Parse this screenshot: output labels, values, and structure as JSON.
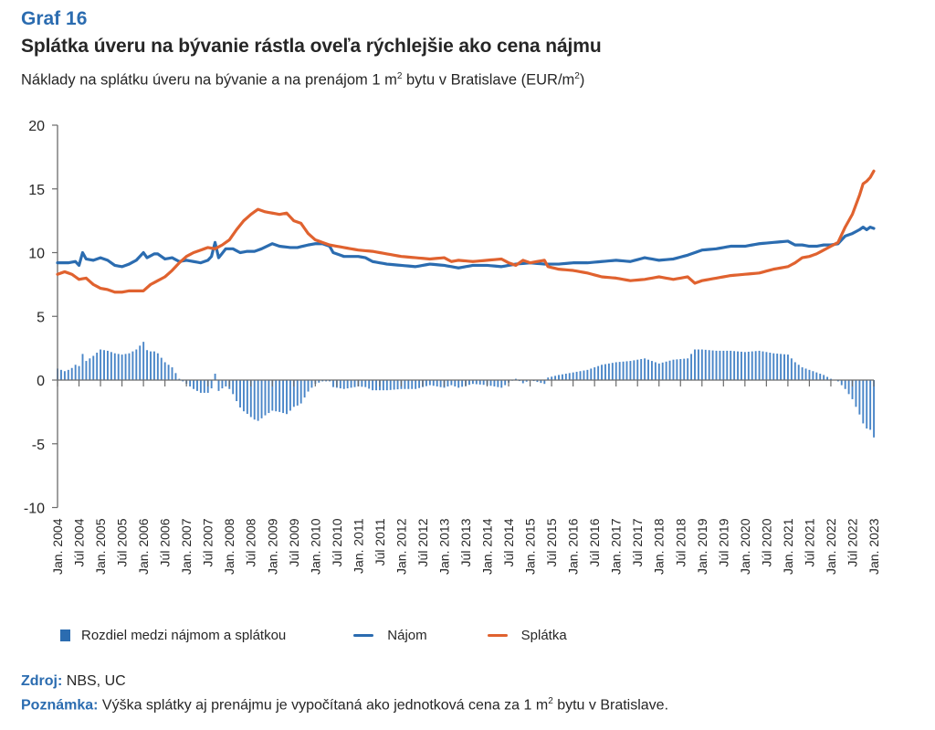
{
  "header": {
    "graf_number": "Graf 16",
    "title": "Splátka úveru na bývanie rástla oveľa rýchlejšie ako cena nájmu",
    "subtitle_pre": "Náklady na splátku úveru na bývanie a na prenájom 1 m",
    "subtitle_sup": "2",
    "subtitle_mid": " bytu v Bratislave (EUR/m",
    "subtitle_sup2": "2",
    "subtitle_post": ")"
  },
  "legend": {
    "diff_label": "Rozdiel medzi nájmom a splátkou",
    "najom_label": "Nájom",
    "splatka_label": "Splátka"
  },
  "footer": {
    "source_label": "Zdroj:",
    "source_text": " NBS, UC",
    "note_label": "Poznámka:",
    "note_pre": " Výška splátky aj prenájmu je vypočítaná ako jednotková cena za 1 m",
    "note_sup": "2",
    "note_post": " bytu v Bratislave."
  },
  "colors": {
    "najom": "#2b6cb0",
    "splatka": "#e0622f",
    "diff": "#4a86c8",
    "axis": "#6b6b6b"
  },
  "chart_data": {
    "type": "line",
    "title": "Splátka úveru na bývanie rástla oveľa rýchlejšie ako cena nájmu",
    "ylabel": "EUR/m2",
    "xlabel": "",
    "ylim": [
      -10,
      20
    ],
    "yticks": [
      20,
      15,
      10,
      5,
      0,
      -5,
      -10
    ],
    "x_start": "2004-01",
    "x_end": "2023-01",
    "xtick_labels": [
      "Jan. 2004",
      "Júl 2004",
      "Jan. 2005",
      "Júl 2005",
      "Jan. 2006",
      "Júl 2006",
      "Jan. 2007",
      "Júl 2007",
      "Jan. 2008",
      "Júl 2008",
      "Jan. 2009",
      "Júl 2009",
      "Jan. 2010",
      "Júl 2010",
      "Jan. 2011",
      "Júl 2011",
      "Jan. 2012",
      "Júl 2012",
      "Jan. 2013",
      "Júl 2013",
      "Jan. 2014",
      "Júl 2014",
      "Jan. 2015",
      "Júl 2015",
      "Jan. 2016",
      "Júl 2016",
      "Jan. 2017",
      "Júl 2017",
      "Jan. 2018",
      "Júl 2018",
      "Jan. 2019",
      "Júl 2019",
      "Jan. 2020",
      "Júl 2020",
      "Jan. 2021",
      "Júl 2021",
      "Jan. 2022",
      "Júl 2022",
      "Jan. 2023"
    ],
    "grid": false,
    "legend_position": "bottom",
    "series": [
      {
        "name": "Nájom",
        "type": "line",
        "points": [
          [
            "2004-01",
            9.2
          ],
          [
            "2004-04",
            9.2
          ],
          [
            "2004-06",
            9.3
          ],
          [
            "2004-07",
            9.0
          ],
          [
            "2004-08",
            10.0
          ],
          [
            "2004-09",
            9.5
          ],
          [
            "2004-11",
            9.4
          ],
          [
            "2005-01",
            9.6
          ],
          [
            "2005-03",
            9.4
          ],
          [
            "2005-05",
            9.0
          ],
          [
            "2005-07",
            8.9
          ],
          [
            "2005-09",
            9.1
          ],
          [
            "2005-11",
            9.4
          ],
          [
            "2006-01",
            10.0
          ],
          [
            "2006-02",
            9.6
          ],
          [
            "2006-04",
            9.9
          ],
          [
            "2006-05",
            9.9
          ],
          [
            "2006-07",
            9.5
          ],
          [
            "2006-09",
            9.6
          ],
          [
            "2006-11",
            9.3
          ],
          [
            "2007-01",
            9.4
          ],
          [
            "2007-03",
            9.3
          ],
          [
            "2007-05",
            9.2
          ],
          [
            "2007-07",
            9.4
          ],
          [
            "2007-08",
            9.7
          ],
          [
            "2007-09",
            10.8
          ],
          [
            "2007-10",
            9.6
          ],
          [
            "2007-12",
            10.3
          ],
          [
            "2008-02",
            10.3
          ],
          [
            "2008-04",
            10.0
          ],
          [
            "2008-06",
            10.1
          ],
          [
            "2008-08",
            10.1
          ],
          [
            "2008-10",
            10.3
          ],
          [
            "2009-01",
            10.7
          ],
          [
            "2009-03",
            10.5
          ],
          [
            "2009-06",
            10.4
          ],
          [
            "2009-08",
            10.4
          ],
          [
            "2009-11",
            10.6
          ],
          [
            "2010-01",
            10.7
          ],
          [
            "2010-03",
            10.7
          ],
          [
            "2010-05",
            10.5
          ],
          [
            "2010-06",
            10.0
          ],
          [
            "2010-09",
            9.7
          ],
          [
            "2011-01",
            9.7
          ],
          [
            "2011-03",
            9.6
          ],
          [
            "2011-05",
            9.3
          ],
          [
            "2011-09",
            9.1
          ],
          [
            "2012-01",
            9.0
          ],
          [
            "2012-05",
            8.9
          ],
          [
            "2012-09",
            9.1
          ],
          [
            "2013-01",
            9.0
          ],
          [
            "2013-05",
            8.8
          ],
          [
            "2013-09",
            9.0
          ],
          [
            "2014-01",
            9.0
          ],
          [
            "2014-05",
            8.9
          ],
          [
            "2014-09",
            9.1
          ],
          [
            "2015-01",
            9.2
          ],
          [
            "2015-05",
            9.1
          ],
          [
            "2015-09",
            9.1
          ],
          [
            "2016-01",
            9.2
          ],
          [
            "2016-05",
            9.2
          ],
          [
            "2016-09",
            9.3
          ],
          [
            "2017-01",
            9.4
          ],
          [
            "2017-05",
            9.3
          ],
          [
            "2017-09",
            9.6
          ],
          [
            "2018-01",
            9.4
          ],
          [
            "2018-05",
            9.5
          ],
          [
            "2018-09",
            9.8
          ],
          [
            "2019-01",
            10.2
          ],
          [
            "2019-05",
            10.3
          ],
          [
            "2019-09",
            10.5
          ],
          [
            "2020-01",
            10.5
          ],
          [
            "2020-05",
            10.7
          ],
          [
            "2020-09",
            10.8
          ],
          [
            "2021-01",
            10.9
          ],
          [
            "2021-03",
            10.6
          ],
          [
            "2021-05",
            10.6
          ],
          [
            "2021-07",
            10.5
          ],
          [
            "2021-09",
            10.5
          ],
          [
            "2021-11",
            10.6
          ],
          [
            "2022-01",
            10.6
          ],
          [
            "2022-03",
            10.7
          ],
          [
            "2022-05",
            11.3
          ],
          [
            "2022-07",
            11.5
          ],
          [
            "2022-09",
            11.8
          ],
          [
            "2022-10",
            12.0
          ],
          [
            "2022-11",
            11.8
          ],
          [
            "2022-12",
            12.0
          ],
          [
            "2023-01",
            11.9
          ]
        ]
      },
      {
        "name": "Splátka",
        "type": "line",
        "points": [
          [
            "2004-01",
            8.3
          ],
          [
            "2004-03",
            8.5
          ],
          [
            "2004-05",
            8.3
          ],
          [
            "2004-07",
            7.9
          ],
          [
            "2004-09",
            8.0
          ],
          [
            "2004-11",
            7.5
          ],
          [
            "2005-01",
            7.2
          ],
          [
            "2005-03",
            7.1
          ],
          [
            "2005-05",
            6.9
          ],
          [
            "2005-07",
            6.9
          ],
          [
            "2005-09",
            7.0
          ],
          [
            "2005-11",
            7.0
          ],
          [
            "2006-01",
            7.0
          ],
          [
            "2006-03",
            7.5
          ],
          [
            "2006-05",
            7.8
          ],
          [
            "2006-07",
            8.1
          ],
          [
            "2006-09",
            8.6
          ],
          [
            "2006-11",
            9.2
          ],
          [
            "2007-01",
            9.7
          ],
          [
            "2007-03",
            10.0
          ],
          [
            "2007-05",
            10.2
          ],
          [
            "2007-07",
            10.4
          ],
          [
            "2007-09",
            10.3
          ],
          [
            "2007-11",
            10.6
          ],
          [
            "2008-01",
            11.0
          ],
          [
            "2008-03",
            11.8
          ],
          [
            "2008-05",
            12.5
          ],
          [
            "2008-07",
            13.0
          ],
          [
            "2008-09",
            13.4
          ],
          [
            "2008-11",
            13.2
          ],
          [
            "2009-01",
            13.1
          ],
          [
            "2009-03",
            13.0
          ],
          [
            "2009-05",
            13.1
          ],
          [
            "2009-07",
            12.5
          ],
          [
            "2009-09",
            12.3
          ],
          [
            "2009-11",
            11.5
          ],
          [
            "2010-01",
            11.0
          ],
          [
            "2010-03",
            10.8
          ],
          [
            "2010-05",
            10.6
          ],
          [
            "2010-07",
            10.5
          ],
          [
            "2010-09",
            10.4
          ],
          [
            "2011-01",
            10.2
          ],
          [
            "2011-05",
            10.1
          ],
          [
            "2011-09",
            9.9
          ],
          [
            "2012-01",
            9.7
          ],
          [
            "2012-05",
            9.6
          ],
          [
            "2012-09",
            9.5
          ],
          [
            "2013-01",
            9.6
          ],
          [
            "2013-03",
            9.3
          ],
          [
            "2013-05",
            9.4
          ],
          [
            "2013-09",
            9.3
          ],
          [
            "2014-01",
            9.4
          ],
          [
            "2014-05",
            9.5
          ],
          [
            "2014-07",
            9.2
          ],
          [
            "2014-09",
            9.0
          ],
          [
            "2014-11",
            9.4
          ],
          [
            "2015-01",
            9.2
          ],
          [
            "2015-03",
            9.3
          ],
          [
            "2015-05",
            9.4
          ],
          [
            "2015-06",
            8.9
          ],
          [
            "2015-09",
            8.7
          ],
          [
            "2016-01",
            8.6
          ],
          [
            "2016-05",
            8.4
          ],
          [
            "2016-09",
            8.1
          ],
          [
            "2017-01",
            8.0
          ],
          [
            "2017-05",
            7.8
          ],
          [
            "2017-09",
            7.9
          ],
          [
            "2018-01",
            8.1
          ],
          [
            "2018-05",
            7.9
          ],
          [
            "2018-09",
            8.1
          ],
          [
            "2018-11",
            7.6
          ],
          [
            "2019-01",
            7.8
          ],
          [
            "2019-05",
            8.0
          ],
          [
            "2019-09",
            8.2
          ],
          [
            "2020-01",
            8.3
          ],
          [
            "2020-05",
            8.4
          ],
          [
            "2020-09",
            8.7
          ],
          [
            "2021-01",
            8.9
          ],
          [
            "2021-03",
            9.2
          ],
          [
            "2021-05",
            9.6
          ],
          [
            "2021-07",
            9.7
          ],
          [
            "2021-09",
            9.9
          ],
          [
            "2021-11",
            10.2
          ],
          [
            "2022-01",
            10.5
          ],
          [
            "2022-03",
            10.8
          ],
          [
            "2022-04",
            11.4
          ],
          [
            "2022-05",
            12.0
          ],
          [
            "2022-07",
            13.0
          ],
          [
            "2022-09",
            14.5
          ],
          [
            "2022-10",
            15.4
          ],
          [
            "2022-11",
            15.6
          ],
          [
            "2022-12",
            15.9
          ],
          [
            "2023-01",
            16.4
          ]
        ]
      },
      {
        "name": "Rozdiel medzi nájmom a splátkou",
        "type": "bar",
        "frequency": "monthly",
        "definition": "Nájom minus Splátka"
      }
    ]
  }
}
